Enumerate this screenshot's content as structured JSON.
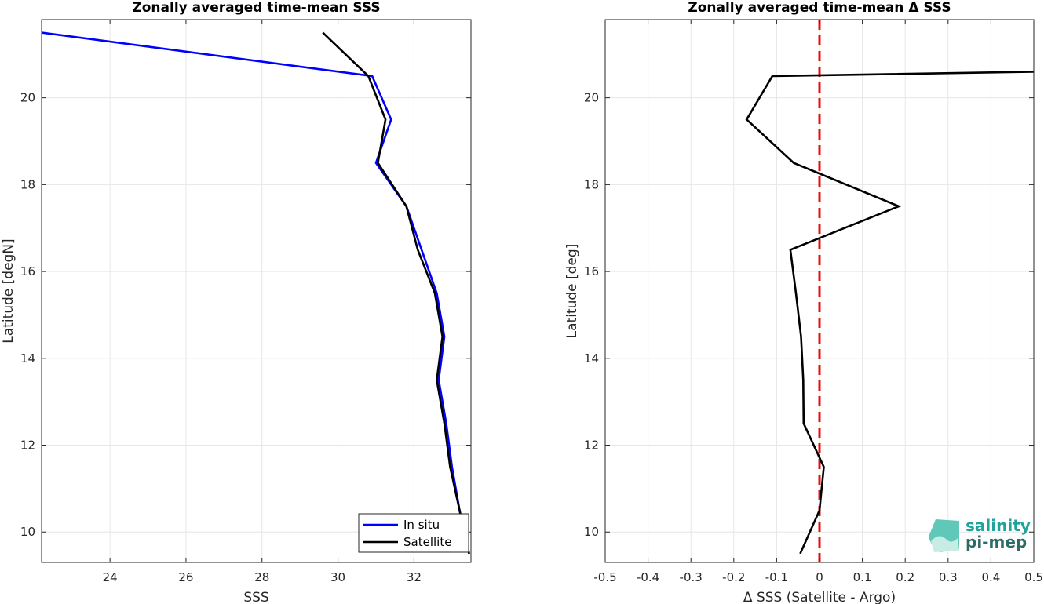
{
  "chart_data": [
    {
      "type": "line",
      "title": "Zonally averaged time-mean SSS",
      "xlabel": "SSS",
      "ylabel": "Latitude [degN]",
      "xlim": [
        22.2,
        33.5
      ],
      "ylim": [
        9.3,
        21.8
      ],
      "xticks": [
        24,
        26,
        28,
        30,
        32
      ],
      "yticks": [
        10,
        12,
        14,
        16,
        18,
        20
      ],
      "grid": true,
      "legend_position": "bottom-right",
      "series": [
        {
          "name": "In situ",
          "color": "#0000ff",
          "points": [
            [
              33.45,
              9.5
            ],
            [
              33.2,
              10.5
            ],
            [
              33.0,
              11.5
            ],
            [
              32.85,
              12.5
            ],
            [
              32.65,
              13.5
            ],
            [
              32.8,
              14.5
            ],
            [
              32.6,
              15.5
            ],
            [
              32.2,
              16.5
            ],
            [
              31.8,
              17.5
            ],
            [
              31.0,
              18.5
            ],
            [
              31.4,
              19.5
            ],
            [
              30.9,
              20.5
            ],
            [
              22.2,
              21.5
            ]
          ]
        },
        {
          "name": "Satellite",
          "color": "#000000",
          "points": [
            [
              33.45,
              9.5
            ],
            [
              33.2,
              10.5
            ],
            [
              32.95,
              11.5
            ],
            [
              32.8,
              12.5
            ],
            [
              32.6,
              13.5
            ],
            [
              32.75,
              14.5
            ],
            [
              32.55,
              15.5
            ],
            [
              32.1,
              16.5
            ],
            [
              31.8,
              17.5
            ],
            [
              31.05,
              18.5
            ],
            [
              31.25,
              19.5
            ],
            [
              30.8,
              20.5
            ],
            [
              29.6,
              21.5
            ]
          ]
        }
      ]
    },
    {
      "type": "line",
      "title": "Zonally averaged time-mean Δ SSS",
      "xlabel": "Δ SSS (Satellite - Argo)",
      "ylabel": "Latitude [deg]",
      "xlim": [
        -0.5,
        0.5
      ],
      "ylim": [
        9.3,
        21.8
      ],
      "xticks": [
        -0.5,
        -0.4,
        -0.3,
        -0.2,
        -0.1,
        0,
        0.1,
        0.2,
        0.3,
        0.4,
        0.5
      ],
      "xtick_labels": [
        "-0.5",
        "-0.4",
        "-0.3",
        "-0.2",
        "-0.1",
        "0",
        "0.1",
        "0.2",
        "0.3",
        "0.4",
        "0.5"
      ],
      "yticks": [
        10,
        12,
        14,
        16,
        18,
        20
      ],
      "grid": true,
      "reference_line": {
        "x": 0,
        "color": "#e01010",
        "style": "dashed"
      },
      "series": [
        {
          "color": "#000000",
          "points": [
            [
              -0.045,
              9.5
            ],
            [
              0.0,
              10.5
            ],
            [
              0.01,
              11.5
            ],
            [
              -0.037,
              12.5
            ],
            [
              -0.038,
              13.5
            ],
            [
              -0.043,
              14.5
            ],
            [
              -0.055,
              15.5
            ],
            [
              -0.068,
              16.5
            ],
            [
              0.185,
              17.5
            ],
            [
              -0.06,
              18.5
            ],
            [
              -0.17,
              19.5
            ],
            [
              -0.11,
              20.5
            ],
            [
              0.5,
              20.6
            ]
          ]
        }
      ]
    }
  ],
  "logo": {
    "line1": "salinity",
    "line2": "pi-mep"
  }
}
